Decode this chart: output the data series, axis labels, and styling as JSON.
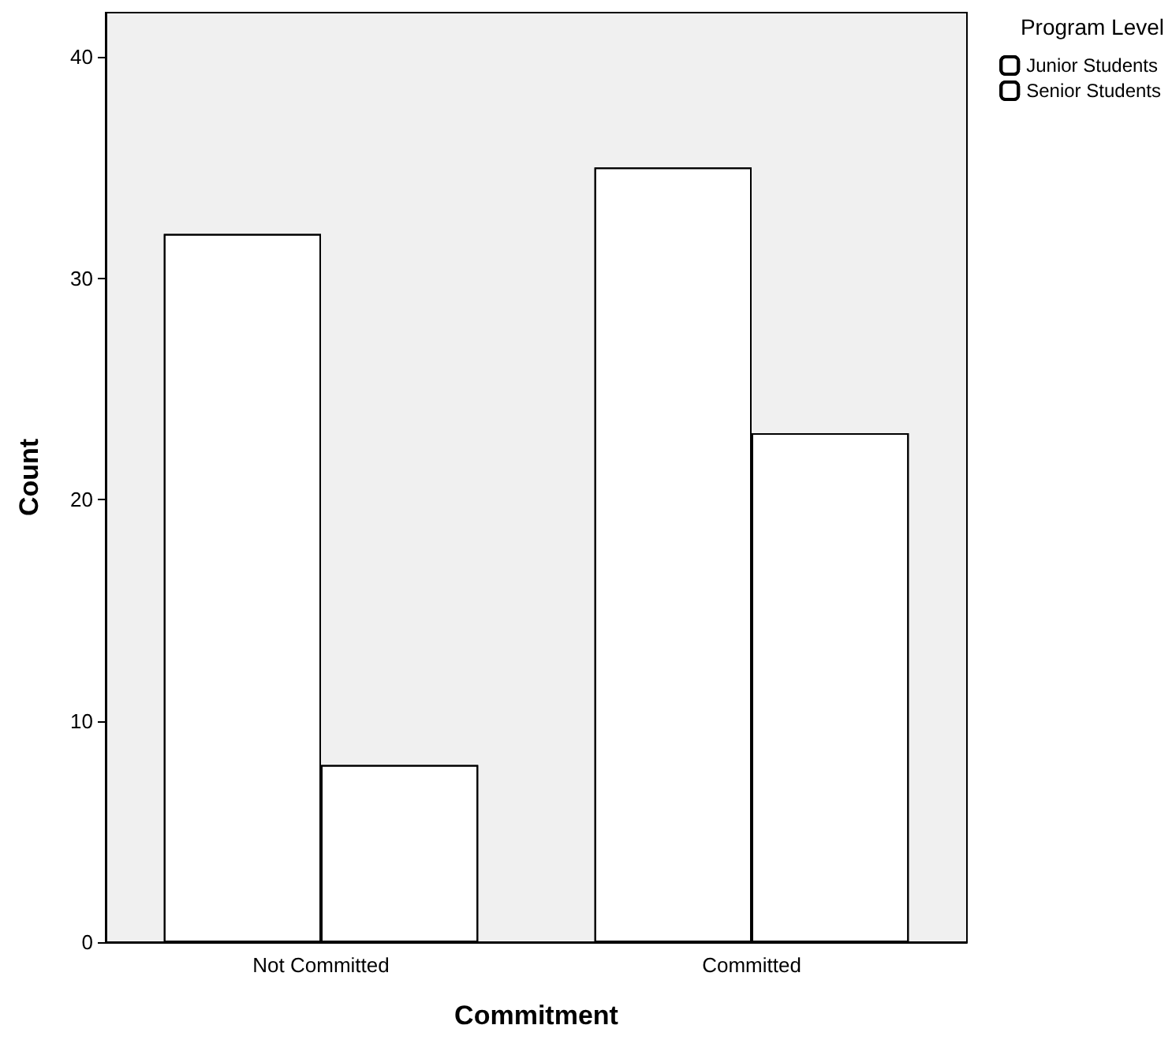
{
  "chart_data": {
    "type": "bar",
    "xlabel": "Commitment",
    "ylabel": "Count",
    "legend_title": "Program Level",
    "categories": [
      "Not Committed",
      "Committed"
    ],
    "series": [
      {
        "name": "Junior Students",
        "color": "#ffffff",
        "values": [
          32,
          35
        ]
      },
      {
        "name": "Senior Students",
        "color": "#ffffff",
        "values": [
          8,
          23
        ]
      }
    ],
    "ylim": [
      0,
      42
    ],
    "yticks": [
      0,
      10,
      20,
      30,
      40
    ],
    "grid": false,
    "legend": "top right"
  }
}
